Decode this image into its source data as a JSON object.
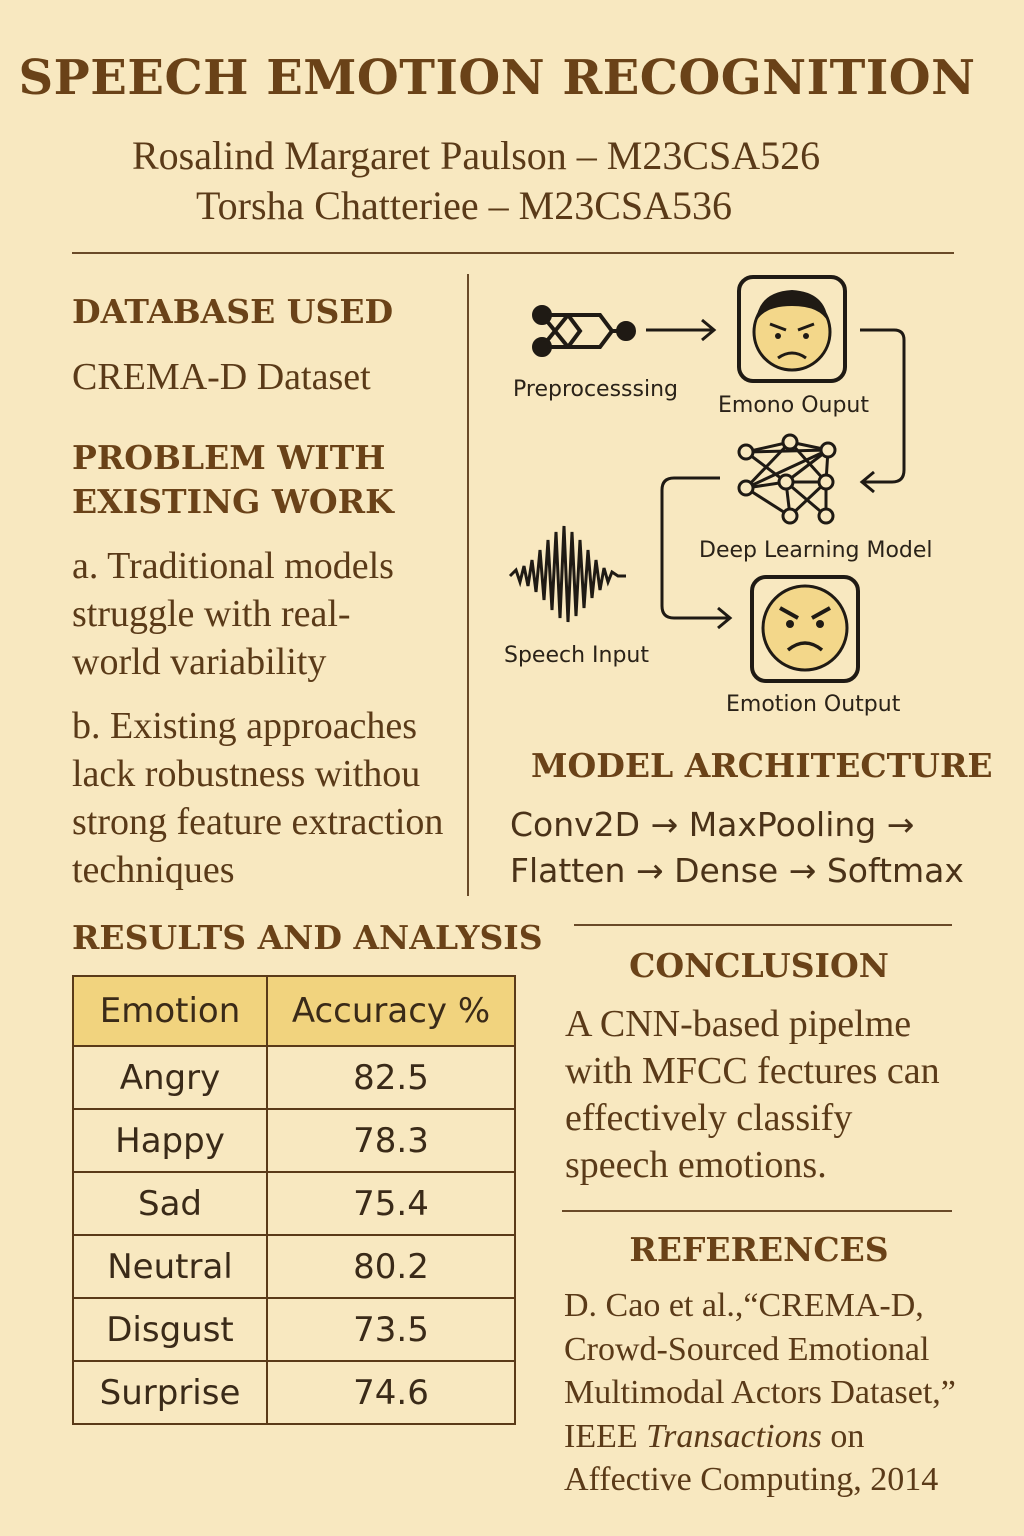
{
  "title": "SPEECH EMOTION RECOGNITION",
  "authors": [
    "Rosalind Margaret Paulson – M23CSA526",
    "Torsha Chatteriee – M23CSA536"
  ],
  "database": {
    "heading": "DATABASE USED",
    "text": "CREMA-D Dataset"
  },
  "problem": {
    "heading_line1": "PROBLEM WITH",
    "heading_line2": "EXISTING WORK",
    "point_a": "a. Traditional models struggle with real-world variability",
    "point_b": "b. Existing approaches lack robustness withou strong feature extraction techniques"
  },
  "diagram": {
    "preprocessing_label": "Preprocesssing",
    "emono_output_label": "Emono Ouput",
    "deep_learning_label": "Deep Learning Model",
    "speech_input_label": "Speech Input",
    "emotion_output_label": "Emotion Output"
  },
  "architecture": {
    "heading": "MODEL ARCHITECTURE",
    "line1": "Conv2D → MaxPooling →",
    "line2": "Flatten → Dense → Softmax"
  },
  "results": {
    "heading": "RESULTS AND ANALYSIS",
    "columns": [
      "Emotion",
      "Accuracy %"
    ],
    "rows": [
      {
        "emotion": "Angry",
        "accuracy": "82.5"
      },
      {
        "emotion": "Happy",
        "accuracy": "78.3"
      },
      {
        "emotion": "Sad",
        "accuracy": "75.4"
      },
      {
        "emotion": "Neutral",
        "accuracy": "80.2"
      },
      {
        "emotion": "Disgust",
        "accuracy": "73.5"
      },
      {
        "emotion": "Surprise",
        "accuracy": "74.6"
      }
    ]
  },
  "conclusion": {
    "heading": "CONCLUSION",
    "text": "A CNN-based pipelme with MFCC fectures can effectively classify speech emotions."
  },
  "references": {
    "heading": "REFERENCES",
    "line1": "D. Cao et al.,“CREMA-D,",
    "line2": "Crowd-Sourced Emotional",
    "line3": "Multimodal Actors Dataset,”",
    "line4_prefix": "IEEE ",
    "line4_italic": "Transactions",
    "line4_suffix": " on",
    "line5": "Affective Computing, 2014"
  },
  "colors": {
    "background": "#f8e8c0",
    "heading": "#6a4218",
    "table_header": "#f1d37e",
    "face_fill": "#f3d78a"
  },
  "icons": [
    "network-preprocessing-icon",
    "angry-man-face-icon",
    "neural-network-icon",
    "sound-wave-icon",
    "angry-emoji-icon"
  ]
}
